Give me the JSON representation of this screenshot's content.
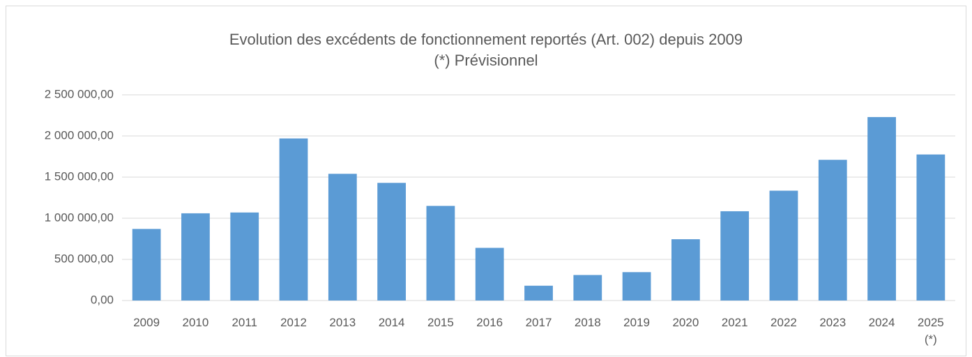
{
  "chart_data": {
    "type": "bar",
    "title": "Evolution des excédents de fonctionnement reportés (Art.  002) depuis 2009",
    "subtitle": "(*) Prévisionnel",
    "categories": [
      "2009",
      "2010",
      "2011",
      "2012",
      "2013",
      "2014",
      "2015",
      "2016",
      "2017",
      "2018",
      "2019",
      "2020",
      "2021",
      "2022",
      "2023",
      "2024",
      "2025\n(*)"
    ],
    "values": [
      870000,
      1060000,
      1070000,
      1970000,
      1540000,
      1430000,
      1150000,
      640000,
      180000,
      310000,
      345000,
      745000,
      1085000,
      1335000,
      1710000,
      2230000,
      1775000
    ],
    "color": "#5b9bd5",
    "ylim": [
      0,
      2500000
    ],
    "yticks": [
      {
        "value": 0,
        "label": "0,00"
      },
      {
        "value": 500000,
        "label": "500 000,00"
      },
      {
        "value": 1000000,
        "label": "1 000 000,00"
      },
      {
        "value": 1500000,
        "label": "1 500 000,00"
      },
      {
        "value": 2000000,
        "label": "2 000 000,00"
      },
      {
        "value": 2500000,
        "label": "2 500 000,00"
      }
    ],
    "grid": true
  }
}
